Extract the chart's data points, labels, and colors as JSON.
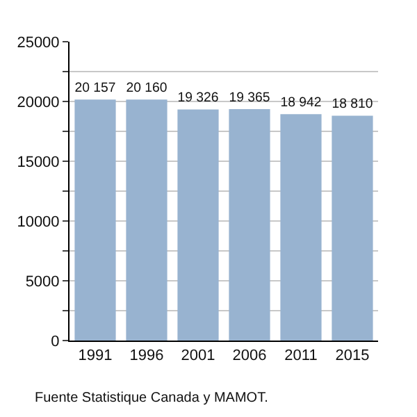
{
  "chart_data": {
    "type": "bar",
    "categories": [
      "1991",
      "1996",
      "2001",
      "2006",
      "2011",
      "2015"
    ],
    "values": [
      20157,
      20160,
      19326,
      19365,
      18942,
      18810
    ],
    "value_labels": [
      "20 157",
      "20 160",
      "19 326",
      "19 365",
      "18 942",
      "18 810"
    ],
    "color": "#98b3d0",
    "ylim": [
      0,
      25000
    ],
    "yticks": [
      0,
      {
        "value": 2500,
        "label": null
      },
      5000,
      {
        "value": 7500,
        "label": null
      },
      10000,
      {
        "value": 12500,
        "label": null
      },
      15000,
      {
        "value": 17500,
        "label": null
      },
      20000,
      {
        "value": 22500,
        "label": null
      },
      25000
    ],
    "grid": "y",
    "annotations": [
      "Fuente Statistique Canada y MAMOT."
    ]
  }
}
